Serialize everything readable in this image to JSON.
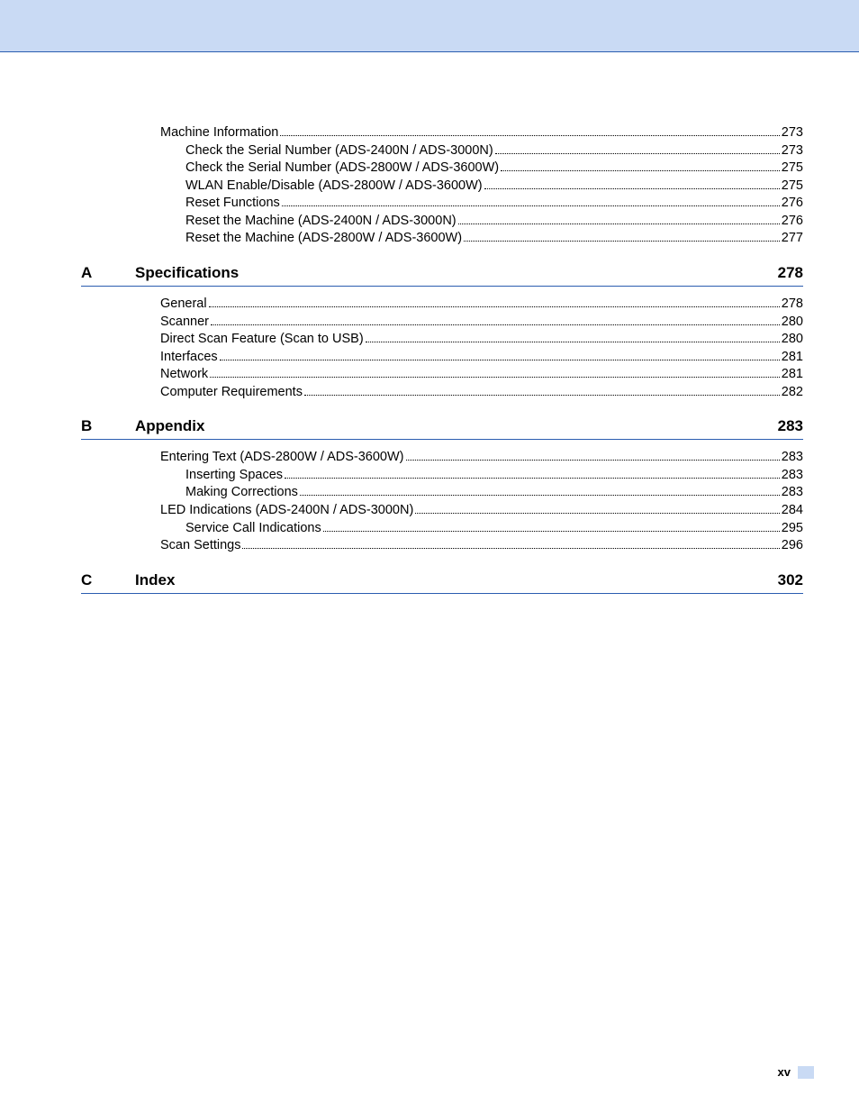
{
  "colors": {
    "header_bg": "#c9daf4",
    "header_border": "#2b5db0",
    "text": "#000000",
    "page_bg": "#ffffff"
  },
  "typography": {
    "body_fontsize": 14.5,
    "heading_fontsize": 17,
    "footer_fontsize": 13
  },
  "pre_entries": [
    {
      "label": "Machine Information",
      "page": "273",
      "indent": 0
    },
    {
      "label": "Check the Serial Number (ADS-2400N / ADS-3000N)",
      "page": "273",
      "indent": 1
    },
    {
      "label": "Check the Serial Number (ADS-2800W / ADS-3600W)",
      "page": "275",
      "indent": 1
    },
    {
      "label": "WLAN Enable/Disable (ADS-2800W / ADS-3600W)",
      "page": "275",
      "indent": 1
    },
    {
      "label": "Reset Functions",
      "page": "276",
      "indent": 1
    },
    {
      "label": "Reset the Machine (ADS-2400N / ADS-3000N)",
      "page": "276",
      "indent": 1
    },
    {
      "label": "Reset the Machine (ADS-2800W / ADS-3600W)",
      "page": "277",
      "indent": 1
    }
  ],
  "sections": [
    {
      "letter": "A",
      "title": "Specifications",
      "page": "278",
      "entries": [
        {
          "label": "General",
          "page": "278",
          "indent": 0
        },
        {
          "label": "Scanner",
          "page": "280",
          "indent": 0
        },
        {
          "label": "Direct Scan Feature (Scan to USB)",
          "page": "280",
          "indent": 0
        },
        {
          "label": "Interfaces",
          "page": "281",
          "indent": 0
        },
        {
          "label": "Network",
          "page": "281",
          "indent": 0
        },
        {
          "label": "Computer Requirements",
          "page": "282",
          "indent": 0
        }
      ]
    },
    {
      "letter": "B",
      "title": "Appendix",
      "page": "283",
      "entries": [
        {
          "label": "Entering Text (ADS-2800W / ADS-3600W)",
          "page": "283",
          "indent": 0
        },
        {
          "label": "Inserting Spaces",
          "page": "283",
          "indent": 1
        },
        {
          "label": "Making Corrections",
          "page": "283",
          "indent": 1
        },
        {
          "label": "LED Indications (ADS-2400N / ADS-3000N)",
          "page": "284",
          "indent": 0
        },
        {
          "label": "Service Call Indications",
          "page": "295",
          "indent": 1
        },
        {
          "label": "Scan Settings",
          "page": "296",
          "indent": 0
        }
      ]
    },
    {
      "letter": "C",
      "title": "Index",
      "page": "302",
      "entries": []
    }
  ],
  "footer": {
    "page_number": "xv"
  }
}
